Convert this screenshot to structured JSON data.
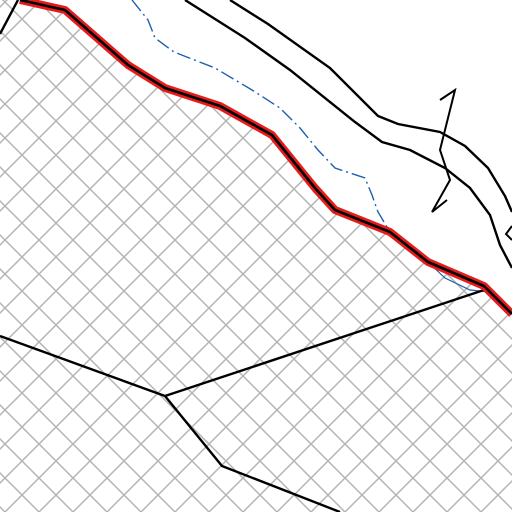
{
  "map": {
    "type": "cadastral-parcel-map",
    "labels": [],
    "colors": {
      "background": "#ffffff",
      "hatch": "#b4b4b4",
      "parcel_boundary": "#000000",
      "highlight_boundary": "#e41c1c",
      "water_line": "#1f5fb0"
    },
    "features": [
      {
        "id": "highlight-boundary",
        "kind": "selected parcel edge"
      },
      {
        "id": "parcel-boundaries",
        "kind": "parcel lines"
      },
      {
        "id": "road-edges",
        "kind": "road double line"
      },
      {
        "id": "stream-line",
        "kind": "watercourse dash-dot"
      },
      {
        "id": "break-symbol",
        "kind": "zigzag break mark"
      }
    ]
  }
}
